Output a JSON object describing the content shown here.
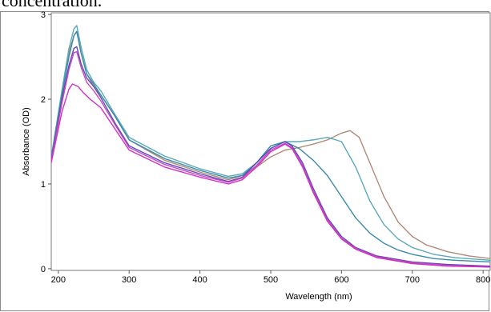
{
  "caption": {
    "text": "concentration."
  },
  "chart_data": {
    "type": "line",
    "title": "",
    "xlabel": "Wavelength (nm)",
    "ylabel": "Absorbance (OD)",
    "xlim": [
      190,
      810
    ],
    "ylim": [
      -0.02,
      3.02
    ],
    "x_ticks": [
      200,
      300,
      400,
      500,
      600,
      700,
      800
    ],
    "y_ticks": [
      0,
      1,
      2,
      3
    ],
    "x_tick_labels": [
      "200",
      "300",
      "400",
      "500",
      "600",
      "700",
      "800"
    ],
    "y_tick_labels": [
      "0",
      "1",
      "2",
      "3"
    ],
    "grid": true,
    "legend": "none",
    "series": [
      {
        "color": "#b08a78",
        "x": [
          190,
          205,
          215,
          222,
          226,
          232,
          240,
          250,
          260,
          280,
          300,
          350,
          400,
          440,
          460,
          480,
          500,
          520,
          540,
          560,
          580,
          600,
          612,
          625,
          640,
          660,
          680,
          700,
          720,
          750,
          780,
          810
        ],
        "y": [
          1.3,
          2.05,
          2.55,
          2.75,
          2.8,
          2.55,
          2.3,
          2.15,
          2.05,
          1.8,
          1.52,
          1.28,
          1.14,
          1.05,
          1.1,
          1.2,
          1.32,
          1.4,
          1.43,
          1.47,
          1.52,
          1.6,
          1.63,
          1.55,
          1.25,
          0.85,
          0.55,
          0.38,
          0.28,
          0.2,
          0.15,
          0.12
        ]
      },
      {
        "color": "#5aa8b8",
        "x": [
          190,
          205,
          215,
          222,
          226,
          232,
          240,
          250,
          260,
          280,
          300,
          350,
          400,
          440,
          460,
          480,
          500,
          520,
          540,
          560,
          580,
          600,
          620,
          640,
          660,
          680,
          700,
          730,
          760,
          810
        ],
        "y": [
          1.32,
          2.1,
          2.6,
          2.83,
          2.87,
          2.62,
          2.35,
          2.2,
          2.1,
          1.82,
          1.55,
          1.33,
          1.18,
          1.09,
          1.12,
          1.25,
          1.42,
          1.5,
          1.5,
          1.52,
          1.55,
          1.5,
          1.2,
          0.8,
          0.52,
          0.35,
          0.25,
          0.17,
          0.13,
          0.1
        ]
      },
      {
        "color": "#3a8aa8",
        "x": [
          190,
          205,
          215,
          222,
          226,
          232,
          240,
          250,
          260,
          280,
          300,
          350,
          400,
          440,
          460,
          480,
          500,
          520,
          540,
          560,
          580,
          600,
          620,
          640,
          660,
          680,
          700,
          730,
          760,
          810
        ],
        "y": [
          1.3,
          2.05,
          2.5,
          2.75,
          2.8,
          2.55,
          2.3,
          2.18,
          2.05,
          1.8,
          1.52,
          1.3,
          1.16,
          1.07,
          1.1,
          1.25,
          1.45,
          1.5,
          1.42,
          1.28,
          1.1,
          0.85,
          0.6,
          0.42,
          0.3,
          0.22,
          0.17,
          0.12,
          0.1,
          0.08
        ]
      },
      {
        "color": "#5a4ab8",
        "x": [
          190,
          205,
          215,
          222,
          226,
          232,
          240,
          250,
          260,
          280,
          300,
          350,
          400,
          440,
          460,
          480,
          500,
          520,
          530,
          545,
          560,
          580,
          600,
          620,
          650,
          700,
          750,
          810
        ],
        "y": [
          1.28,
          2.0,
          2.4,
          2.6,
          2.62,
          2.42,
          2.25,
          2.15,
          2.02,
          1.72,
          1.45,
          1.25,
          1.12,
          1.03,
          1.08,
          1.25,
          1.42,
          1.5,
          1.45,
          1.25,
          0.95,
          0.6,
          0.38,
          0.25,
          0.15,
          0.08,
          0.05,
          0.03
        ]
      },
      {
        "color": "#c84ab8",
        "x": [
          190,
          205,
          215,
          222,
          226,
          232,
          240,
          250,
          260,
          280,
          300,
          350,
          400,
          440,
          460,
          480,
          500,
          520,
          530,
          545,
          560,
          580,
          600,
          620,
          650,
          700,
          750,
          810
        ],
        "y": [
          1.26,
          1.95,
          2.35,
          2.55,
          2.56,
          2.38,
          2.2,
          2.1,
          1.98,
          1.7,
          1.43,
          1.23,
          1.1,
          1.02,
          1.07,
          1.22,
          1.4,
          1.48,
          1.43,
          1.22,
          0.92,
          0.58,
          0.36,
          0.24,
          0.14,
          0.07,
          0.04,
          0.02
        ]
      },
      {
        "color": "#d030c8",
        "x": [
          190,
          205,
          215,
          220,
          228,
          235,
          245,
          260,
          280,
          300,
          350,
          400,
          440,
          460,
          480,
          500,
          520,
          530,
          545,
          560,
          580,
          600,
          620,
          650,
          700,
          750,
          810
        ],
        "y": [
          1.25,
          1.85,
          2.12,
          2.18,
          2.15,
          2.08,
          2.0,
          1.9,
          1.65,
          1.4,
          1.2,
          1.08,
          1.0,
          1.05,
          1.2,
          1.38,
          1.47,
          1.42,
          1.2,
          0.9,
          0.56,
          0.35,
          0.23,
          0.13,
          0.06,
          0.03,
          0.02
        ]
      }
    ]
  }
}
